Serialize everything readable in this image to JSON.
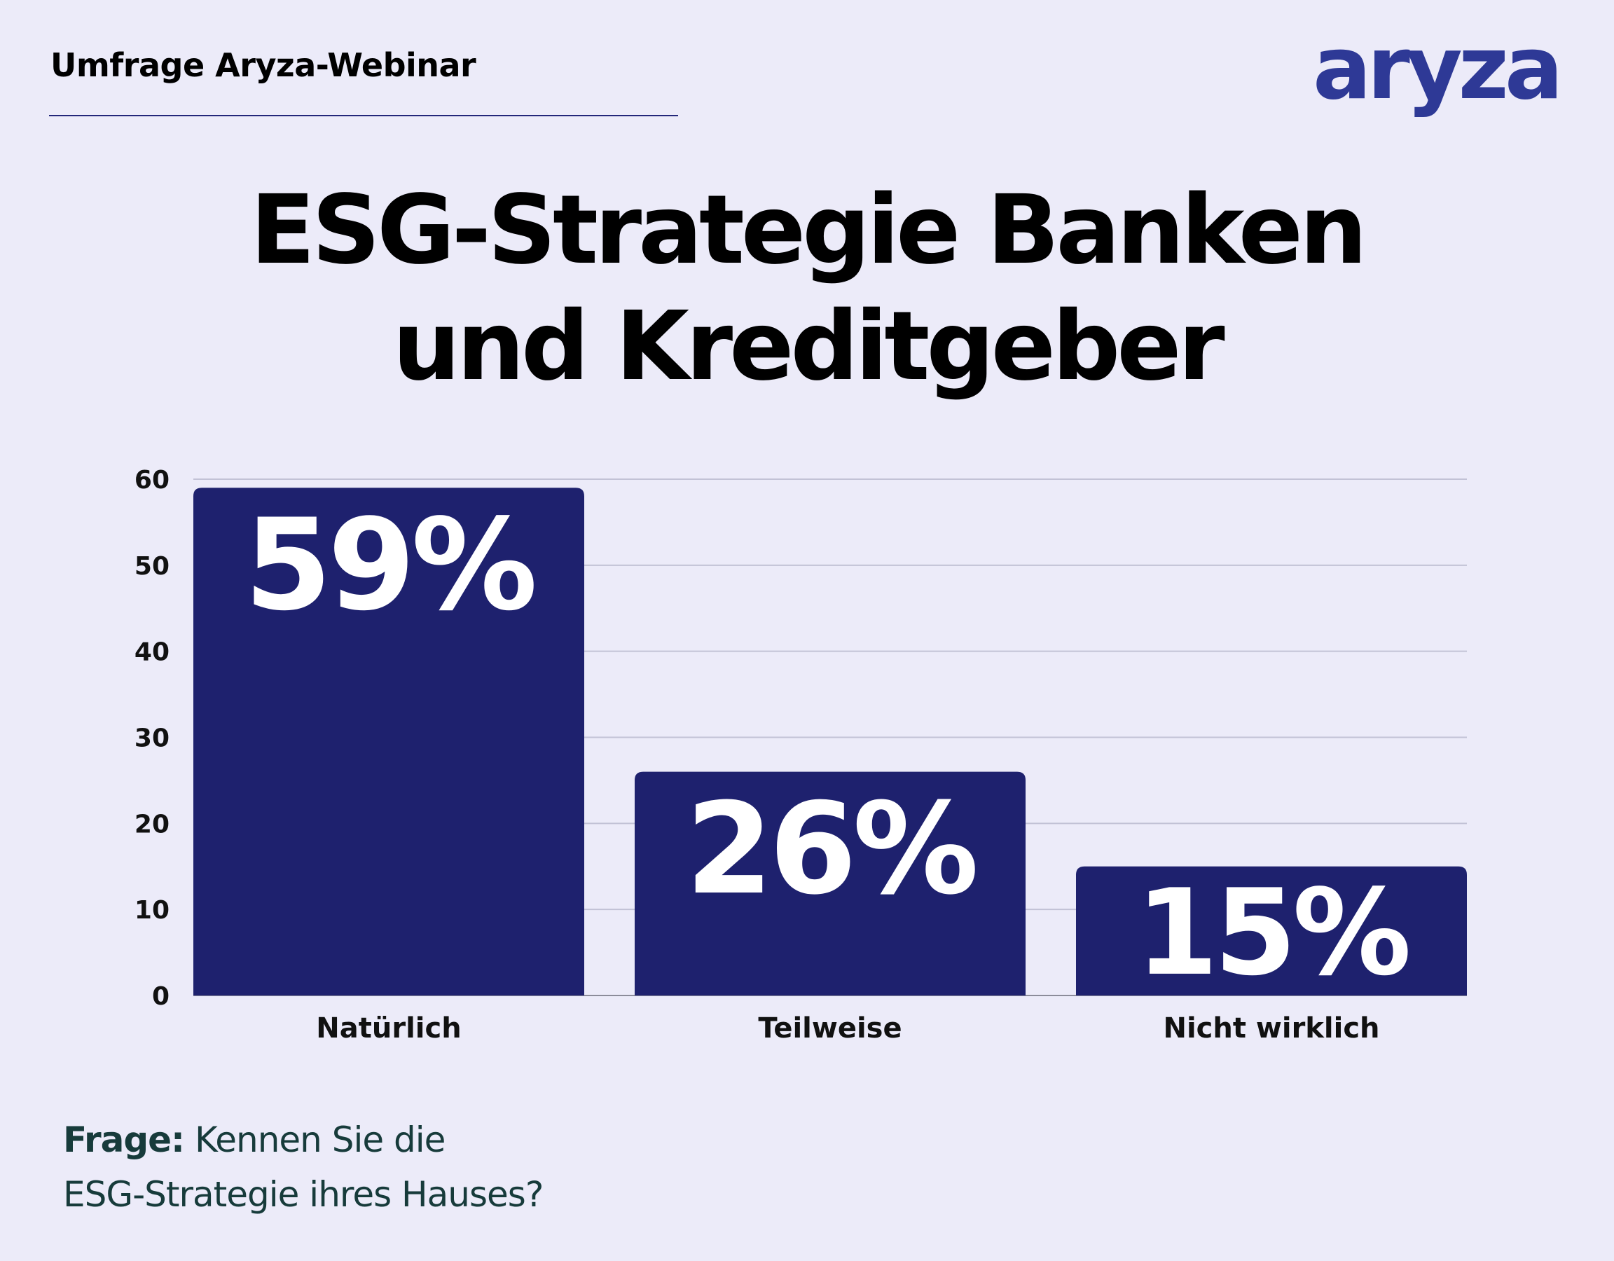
{
  "header": {
    "label": "Umfrage Aryza-Webinar",
    "logo_text": "aryza"
  },
  "title": {
    "line1": "ESG-Strategie Banken",
    "line2": "und Kreditgeber"
  },
  "footer": {
    "question_label": "Frage:",
    "question_text_line1": "Kennen Sie die",
    "question_text_line2": "ESG-Strategie ihres Hauses?"
  },
  "colors": {
    "background": "#ecebf9",
    "bar": "#1e216e",
    "logo": "#2e3996",
    "gridline": "#c2c2d6"
  },
  "chart_data": {
    "type": "bar",
    "categories": [
      "Natürlich",
      "Teilweise",
      "Nicht wirklich"
    ],
    "values": [
      59,
      26,
      15
    ],
    "data_labels": [
      "59%",
      "26%",
      "15%"
    ],
    "yticks": [
      0,
      10,
      20,
      30,
      40,
      50,
      60
    ],
    "ylim": [
      0,
      60
    ],
    "grid": true,
    "legend": "none"
  }
}
